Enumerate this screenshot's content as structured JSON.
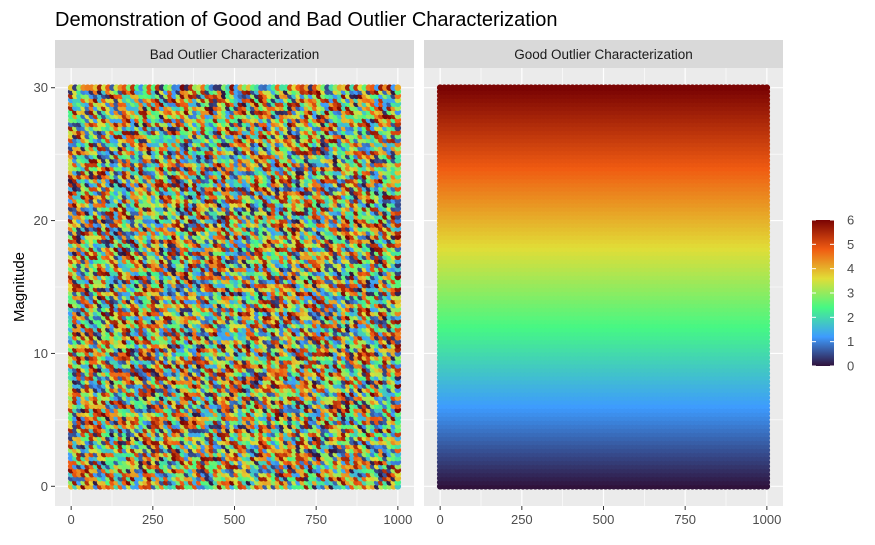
{
  "chart_data": {
    "type": "scatter",
    "title": "Demonstration of Good and Bad Outlier Characterization",
    "ylabel": "Magnitude",
    "xlabel": "",
    "xlim": [
      0,
      1000
    ],
    "ylim": [
      0,
      30
    ],
    "x_ticks": [
      0,
      250,
      500,
      750,
      1000
    ],
    "y_ticks": [
      0,
      10,
      20,
      30
    ],
    "grid": true,
    "facets": [
      {
        "label": "Bad Outlier Characterization",
        "coloring": "random"
      },
      {
        "label": "Good Outlier Characterization",
        "coloring": "by-magnitude"
      }
    ],
    "points": {
      "x_range": [
        0,
        1000
      ],
      "y_range": [
        0,
        30
      ],
      "x_count": 80,
      "y_count": 100,
      "layout": "regular-grid"
    },
    "colorbar": {
      "range": [
        0,
        6
      ],
      "ticks": [
        0,
        1,
        2,
        3,
        4,
        5,
        6
      ],
      "palette": "turbo",
      "stops": [
        "#30123b",
        "#3e9bfe",
        "#46f884",
        "#e1dd37",
        "#f05b12",
        "#7a0403"
      ],
      "legend_placement": "right"
    }
  }
}
